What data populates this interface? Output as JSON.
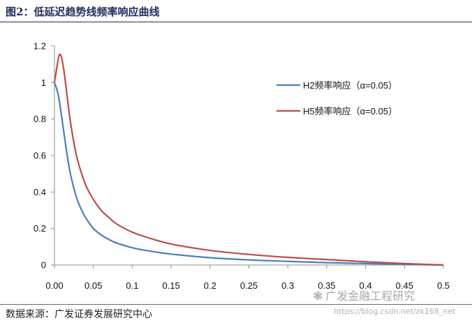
{
  "figure": {
    "title": "图2：低延迟趋势线频率响应曲线",
    "source": "数据来源：广发证券发展研究中心"
  },
  "watermark": {
    "icon": "wechat-icon",
    "text": "广发金融工程研究",
    "url": "https://blog.csdn.net/zk168_net"
  },
  "chart_data": {
    "type": "line",
    "xlim": [
      0,
      0.5
    ],
    "ylim": [
      0,
      1.2
    ],
    "xticks": [
      "0.00",
      "0.05",
      "0.1",
      "0.15",
      "0.2",
      "0.25",
      "0.3",
      "0.35",
      "0.4",
      "0.45",
      "0.5"
    ],
    "yticks": [
      "0",
      "0.2",
      "0.4",
      "0.6",
      "0.8",
      "1",
      "1.2"
    ],
    "grid": false,
    "legend_position": "top-right",
    "series": [
      {
        "name": "H2频率响应（α=0.05）",
        "color": "#4a7ebb",
        "x": [
          0,
          0.005,
          0.01,
          0.015,
          0.02,
          0.025,
          0.03,
          0.035,
          0.04,
          0.05,
          0.06,
          0.07,
          0.08,
          0.1,
          0.12,
          0.15,
          0.2,
          0.25,
          0.3,
          0.35,
          0.4,
          0.45,
          0.5
        ],
        "y": [
          1.0,
          0.93,
          0.79,
          0.64,
          0.51,
          0.42,
          0.35,
          0.3,
          0.26,
          0.2,
          0.165,
          0.14,
          0.12,
          0.095,
          0.078,
          0.06,
          0.04,
          0.028,
          0.02,
          0.013,
          0.008,
          0.004,
          0.0
        ]
      },
      {
        "name": "H5频率响应（α=0.05）",
        "color": "#be4b48",
        "x": [
          0,
          0.003,
          0.006,
          0.009,
          0.012,
          0.015,
          0.02,
          0.025,
          0.03,
          0.04,
          0.05,
          0.06,
          0.07,
          0.08,
          0.1,
          0.12,
          0.15,
          0.2,
          0.25,
          0.3,
          0.35,
          0.4,
          0.45,
          0.5
        ],
        "y": [
          1.0,
          1.08,
          1.15,
          1.14,
          1.07,
          0.97,
          0.8,
          0.67,
          0.57,
          0.44,
          0.36,
          0.3,
          0.26,
          0.225,
          0.18,
          0.15,
          0.115,
          0.08,
          0.058,
          0.042,
          0.03,
          0.018,
          0.008,
          0.0
        ]
      }
    ]
  }
}
